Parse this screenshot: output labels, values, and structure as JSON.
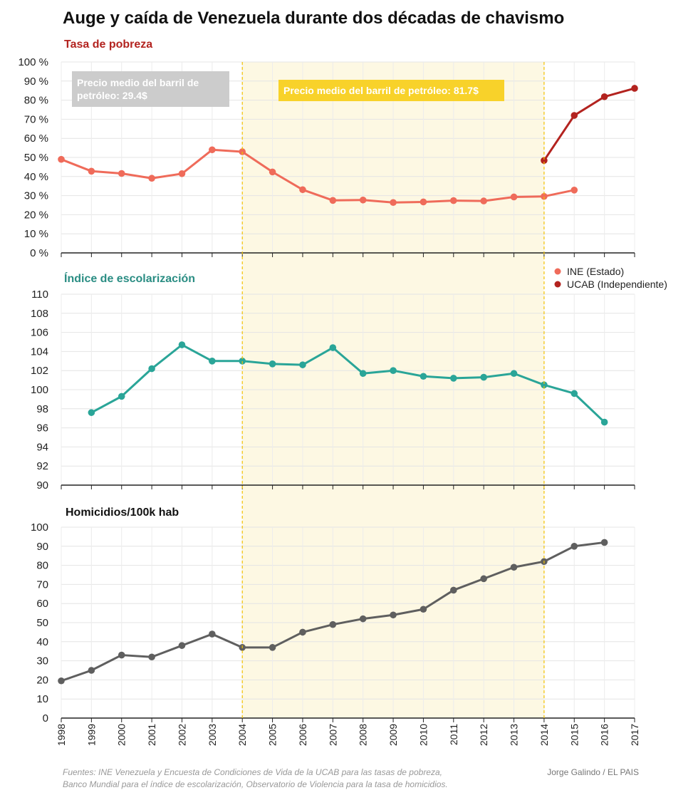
{
  "title": "Auge y caída de Venezuela durante dos décadas de chavismo",
  "colors": {
    "ine": "#ef6b5a",
    "ucab": "#b3231f",
    "school": "#2aa598",
    "homicides": "#5f5f5f",
    "poverty_title": "#b3231f",
    "school_title": "#2a8d83",
    "highlight": "#fdf8e3",
    "highlight_line": "#f3c200",
    "ann_grey": "#cccccc",
    "ann_yellow": "#f8d22a"
  },
  "x_years": [
    1998,
    1999,
    2000,
    2001,
    2002,
    2003,
    2004,
    2005,
    2006,
    2007,
    2008,
    2009,
    2010,
    2011,
    2012,
    2013,
    2014,
    2015,
    2016,
    2017
  ],
  "highlight_range": [
    2004,
    2014
  ],
  "annotations": [
    {
      "text_lines": [
        "Precio medio del barril de",
        "petróleo: 29.4$"
      ],
      "style": "grey"
    },
    {
      "text_lines": [
        "Precio medio del barril de petróleo: 81.7$"
      ],
      "style": "yellow"
    }
  ],
  "legend": [
    {
      "label": "INE (Estado)",
      "series": "ine"
    },
    {
      "label": "UCAB (Independiente)",
      "series": "ucab"
    }
  ],
  "source_lines": [
    "Fuentes: INE Venezuela y Encuesta de Condiciones de Vida de la UCAB para las tasas de pobreza,",
    "Banco Mundial para el índice de escolarización, Observatorio de Violencia para la tasa de homicidios."
  ],
  "credit": "Jorge  Galindo / EL PAIS",
  "chart_data": [
    {
      "type": "line",
      "title": "Tasa de pobreza",
      "ylim": [
        0,
        100
      ],
      "y_ticks": [
        "0 %",
        "10 %",
        "20 %",
        "30 %",
        "40 %",
        "50 %",
        "60 %",
        "70 %",
        "80 %",
        "90 %",
        "100 %"
      ],
      "series": [
        {
          "name": "INE (Estado)",
          "key": "ine",
          "x": [
            1998,
            1999,
            2000,
            2001,
            2002,
            2003,
            2004,
            2005,
            2006,
            2007,
            2008,
            2009,
            2010,
            2011,
            2012,
            2013,
            2014,
            2015
          ],
          "values": [
            49,
            42.8,
            41.6,
            39.1,
            41.5,
            54,
            53,
            42.4,
            33.1,
            27.5,
            27.7,
            26.4,
            26.7,
            27.4,
            27.2,
            29.3,
            29.6,
            32.9
          ]
        },
        {
          "name": "UCAB (Independiente)",
          "key": "ucab",
          "x": [
            2014,
            2015,
            2016,
            2017
          ],
          "values": [
            48.4,
            72,
            81.8,
            86.2
          ]
        }
      ]
    },
    {
      "type": "line",
      "title": "Índice de escolarización",
      "ylim": [
        90,
        110
      ],
      "y_ticks": [
        "90",
        "92",
        "94",
        "96",
        "98",
        "100",
        "102",
        "104",
        "106",
        "108",
        "110"
      ],
      "series": [
        {
          "key": "school",
          "x": [
            1999,
            2000,
            2001,
            2002,
            2003,
            2004,
            2005,
            2006,
            2007,
            2008,
            2009,
            2010,
            2011,
            2012,
            2013,
            2014,
            2015,
            2016
          ],
          "values": [
            97.6,
            99.3,
            102.2,
            104.7,
            103,
            103,
            102.7,
            102.6,
            104.4,
            101.7,
            102,
            101.4,
            101.2,
            101.3,
            101.7,
            100.5,
            99.6,
            96.6
          ]
        }
      ]
    },
    {
      "type": "line",
      "title": "Homicidios/100k hab",
      "ylim": [
        0,
        100
      ],
      "y_ticks": [
        "0",
        "10",
        "20",
        "30",
        "40",
        "50",
        "60",
        "70",
        "80",
        "90",
        "100"
      ],
      "series": [
        {
          "key": "homicides",
          "x": [
            1998,
            1999,
            2000,
            2001,
            2002,
            2003,
            2004,
            2005,
            2006,
            2007,
            2008,
            2009,
            2010,
            2011,
            2012,
            2013,
            2014,
            2015,
            2016
          ],
          "values": [
            19.5,
            25,
            33,
            32,
            38,
            44,
            37,
            37,
            45,
            49,
            52,
            54,
            57,
            67,
            73,
            79,
            82,
            90,
            92
          ]
        }
      ]
    }
  ]
}
